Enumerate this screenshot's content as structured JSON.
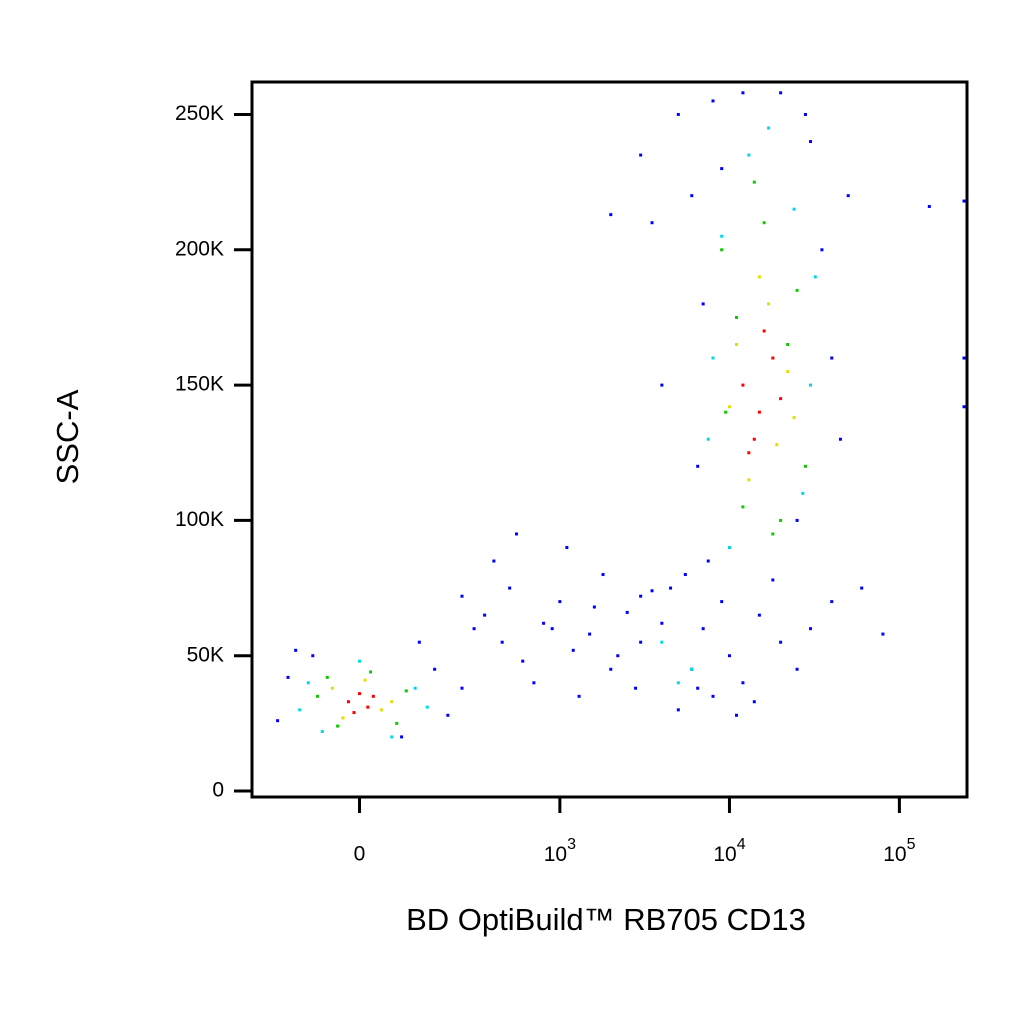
{
  "chart_data": {
    "type": "scatter",
    "x_label": "BD OptiBuild™ RB705 CD13",
    "y_label": "SSC-A",
    "xscale": "biexponential",
    "xlim": [
      -270,
      250000
    ],
    "ylim": [
      -2200,
      262000
    ],
    "xticks": [
      0,
      {
        "value": 1000,
        "label": "10^3"
      },
      {
        "value": 10000,
        "label": "10^4"
      },
      {
        "value": 100000,
        "label": "10^5"
      }
    ],
    "yticks": [
      0,
      {
        "value": 50000,
        "label": "50K"
      },
      {
        "value": 100000,
        "label": "100K"
      },
      {
        "value": 150000,
        "label": "150K"
      },
      {
        "value": 200000,
        "label": "200K"
      },
      {
        "value": 250000,
        "label": "250K"
      }
    ],
    "series": [
      {
        "color": "#0000ff",
        "x": [
          -180,
          -150,
          160,
          200,
          -130,
          120,
          80,
          -90,
          250,
          300,
          350,
          450,
          500,
          600,
          800,
          1000,
          1200,
          1500,
          1800,
          2000,
          2500,
          3000,
          400,
          700,
          900,
          1100,
          1300,
          1600,
          2200,
          2800,
          3500,
          4000,
          250,
          550,
          5000,
          6000,
          7000,
          8000,
          9000,
          10000,
          12000,
          15000,
          20000,
          25000,
          4500,
          5500,
          6500,
          7500,
          11000,
          14000,
          18000,
          30000,
          40000,
          3000,
          5000,
          6000,
          7000,
          35000,
          40000,
          45000,
          30000,
          8000,
          9000,
          4000,
          3500,
          50000,
          12000,
          20000,
          28000,
          25000,
          6500,
          3000,
          150000,
          240000,
          2000,
          80000,
          60000,
          240000,
          240000
        ],
        "y": [
          26000,
          42000,
          45000,
          28000,
          52000,
          55000,
          20000,
          50000,
          38000,
          60000,
          65000,
          55000,
          75000,
          48000,
          62000,
          70000,
          52000,
          58000,
          80000,
          45000,
          66000,
          72000,
          85000,
          40000,
          60000,
          90000,
          35000,
          68000,
          50000,
          38000,
          74000,
          62000,
          72000,
          95000,
          30000,
          45000,
          60000,
          35000,
          70000,
          50000,
          40000,
          65000,
          55000,
          45000,
          75000,
          80000,
          38000,
          85000,
          28000,
          33000,
          78000,
          60000,
          70000,
          55000,
          250000,
          220000,
          180000,
          200000,
          160000,
          130000,
          240000,
          255000,
          230000,
          150000,
          210000,
          220000,
          258000,
          258000,
          250000,
          100000,
          120000,
          235000,
          216000,
          218000,
          213000,
          58000,
          75000,
          160000,
          142000
        ]
      },
      {
        "color": "#00d8e8",
        "x": [
          -120,
          110,
          -100,
          140,
          0,
          -70,
          60,
          8000,
          30000,
          7500,
          32000,
          13000,
          24000,
          10000,
          17000,
          27000,
          9000,
          6000,
          4000,
          5000
        ],
        "y": [
          30000,
          38000,
          40000,
          31000,
          48000,
          22000,
          20000,
          160000,
          150000,
          130000,
          190000,
          235000,
          215000,
          90000,
          245000,
          110000,
          205000,
          45000,
          55000,
          40000
        ]
      },
      {
        "color": "#10c800",
        "x": [
          -80,
          70,
          -60,
          90,
          20,
          -40,
          9000,
          25000,
          12000,
          28000,
          16000,
          20000,
          11000,
          14000,
          22000,
          18000,
          9500
        ],
        "y": [
          35000,
          25000,
          42000,
          37000,
          44000,
          24000,
          200000,
          185000,
          105000,
          120000,
          210000,
          100000,
          175000,
          225000,
          165000,
          95000,
          140000
        ]
      },
      {
        "color": "#e0e000",
        "x": [
          -50,
          40,
          -30,
          60,
          10,
          11000,
          22000,
          17000,
          13000,
          19000,
          24000,
          10000,
          15000
        ],
        "y": [
          38000,
          30000,
          27000,
          33000,
          41000,
          165000,
          155000,
          180000,
          115000,
          128000,
          138000,
          142000,
          190000
        ]
      },
      {
        "color": "#ff0000",
        "x": [
          -20,
          0,
          15,
          -10,
          25,
          12000,
          15000,
          18000,
          14000,
          16000,
          20000,
          13000
        ],
        "y": [
          33000,
          36000,
          31000,
          29000,
          35000,
          150000,
          140000,
          160000,
          130000,
          170000,
          145000,
          125000
        ]
      }
    ]
  }
}
